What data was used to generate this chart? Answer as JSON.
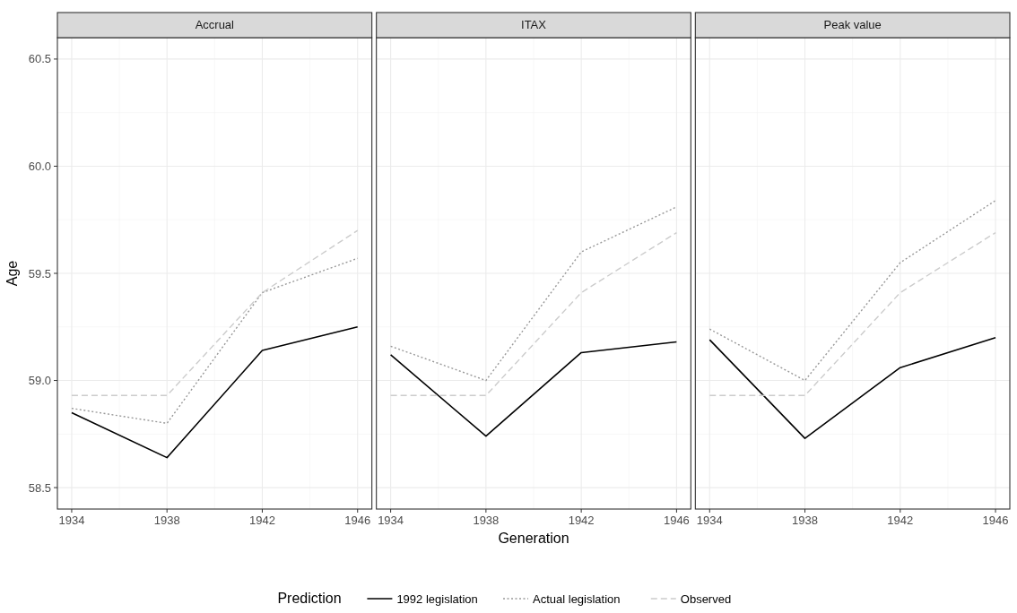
{
  "chart_data": [
    {
      "type": "line",
      "title": "Accrual",
      "ylabel": "Age",
      "legend_title": "Prediction",
      "legend": "bottom",
      "grid": true,
      "x": [
        1934,
        1938,
        1942,
        1946
      ],
      "xlim": [
        1933.4,
        1946.6
      ],
      "xticks": [
        1934,
        1938,
        1942,
        1946
      ],
      "ylim": [
        58.4,
        60.6
      ],
      "yticks": [
        58.5,
        {
          "value": 59,
          "label": "59.0"
        },
        59.5,
        {
          "value": 60,
          "label": "60.0"
        },
        60.5
      ],
      "series": [
        {
          "name": "1992 legislation",
          "color": "#000000",
          "line_style": "solid",
          "values": [
            58.85,
            58.64,
            59.14,
            59.25
          ]
        },
        {
          "name": "Actual legislation",
          "color": "#999999",
          "line_style": "dotted",
          "values": [
            58.87,
            58.8,
            59.41,
            59.57
          ]
        },
        {
          "name": "Observed",
          "color": "#cccccc",
          "line_style": "dashed",
          "values": [
            58.93,
            58.93,
            59.41,
            59.7
          ]
        }
      ]
    },
    {
      "type": "line",
      "title": "ITAX",
      "xlabel": "Generation",
      "tick_labels": "x",
      "grid": true,
      "x": [
        1934,
        1938,
        1942,
        1946
      ],
      "xlim": [
        1933.4,
        1946.6
      ],
      "xticks": [
        1934,
        1938,
        1942,
        1946
      ],
      "ylim": [
        58.4,
        60.6
      ],
      "yticks": [
        58.5,
        59,
        59.5,
        60,
        60.5
      ],
      "series": [
        {
          "color": "#000000",
          "line_style": "solid",
          "values": [
            59.12,
            58.74,
            59.13,
            59.18
          ]
        },
        {
          "color": "#999999",
          "line_style": "dotted",
          "values": [
            59.16,
            59.0,
            59.6,
            59.81
          ]
        },
        {
          "color": "#cccccc",
          "line_style": "dashed",
          "values": [
            58.93,
            58.93,
            59.41,
            59.69
          ]
        }
      ]
    },
    {
      "type": "line",
      "title": "Peak value",
      "tick_labels": "x",
      "grid": true,
      "x": [
        1934,
        1938,
        1942,
        1946
      ],
      "xlim": [
        1933.4,
        1946.6
      ],
      "xticks": [
        1934,
        1938,
        1942,
        1946
      ],
      "ylim": [
        58.4,
        60.6
      ],
      "yticks": [
        58.5,
        59,
        59.5,
        60,
        60.5
      ],
      "series": [
        {
          "color": "#000000",
          "line_style": "solid",
          "values": [
            59.19,
            58.73,
            59.06,
            59.2
          ]
        },
        {
          "color": "#999999",
          "line_style": "dotted",
          "values": [
            59.24,
            59.0,
            59.55,
            59.84
          ]
        },
        {
          "color": "#cccccc",
          "line_style": "dashed",
          "values": [
            58.93,
            58.93,
            59.41,
            59.69
          ]
        }
      ]
    }
  ]
}
